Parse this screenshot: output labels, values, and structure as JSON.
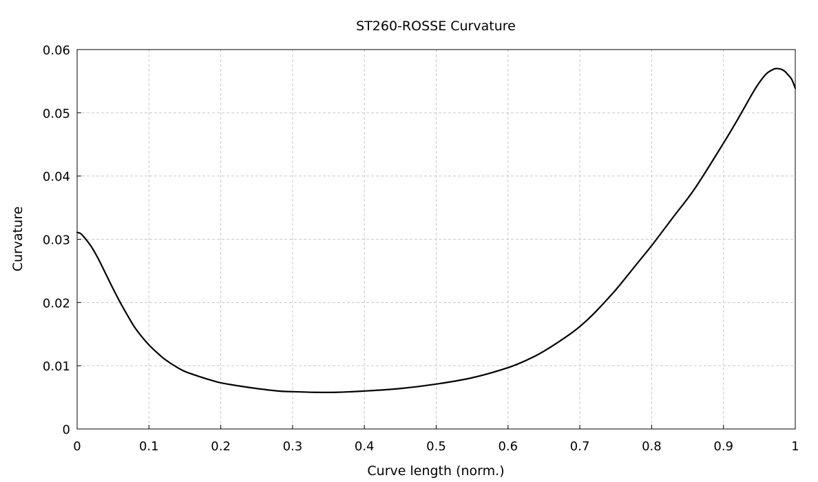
{
  "chart_data": {
    "type": "line",
    "title": "ST260-ROSSE Curvature",
    "xlabel": "Curve length (norm.)",
    "ylabel": "Curvature",
    "xlim": [
      0,
      1
    ],
    "ylim": [
      0,
      0.06
    ],
    "x_ticks": [
      "0",
      "0.1",
      "0.2",
      "0.3",
      "0.4",
      "0.5",
      "0.6",
      "0.7",
      "0.8",
      "0.9",
      "1"
    ],
    "y_ticks": [
      "0",
      "0.01",
      "0.02",
      "0.03",
      "0.04",
      "0.05",
      "0.06"
    ],
    "grid": true,
    "legend": "none",
    "colors": {
      "line": "#000000",
      "grid": "#c8c8c8",
      "axes": "#000000",
      "background": "#ffffff"
    },
    "series": [
      {
        "x": [
          0,
          0.005,
          0.01,
          0.02,
          0.03,
          0.04,
          0.05,
          0.06,
          0.07,
          0.08,
          0.09,
          0.1,
          0.11,
          0.12,
          0.13,
          0.14,
          0.15,
          0.17,
          0.19,
          0.2,
          0.22,
          0.25,
          0.28,
          0.3,
          0.33,
          0.36,
          0.4,
          0.45,
          0.5,
          0.55,
          0.6,
          0.63,
          0.65,
          0.68,
          0.7,
          0.72,
          0.75,
          0.78,
          0.8,
          0.83,
          0.86,
          0.9,
          0.92,
          0.94,
          0.95,
          0.96,
          0.97,
          0.975,
          0.98,
          0.985,
          0.99,
          0.995,
          1.0
        ],
        "y": [
          0.0311,
          0.0309,
          0.0303,
          0.0288,
          0.0268,
          0.0245,
          0.0222,
          0.02,
          0.018,
          0.0161,
          0.0146,
          0.0133,
          0.0122,
          0.0112,
          0.0104,
          0.0097,
          0.0091,
          0.0083,
          0.0076,
          0.0073,
          0.0069,
          0.0064,
          0.006,
          0.0059,
          0.0058,
          0.0058,
          0.006,
          0.0064,
          0.0071,
          0.0081,
          0.0097,
          0.0111,
          0.0123,
          0.0145,
          0.0162,
          0.0183,
          0.022,
          0.0262,
          0.029,
          0.0335,
          0.038,
          0.0452,
          0.049,
          0.053,
          0.0548,
          0.0562,
          0.0569,
          0.057,
          0.0569,
          0.0566,
          0.056,
          0.0553,
          0.0539
        ]
      }
    ]
  }
}
